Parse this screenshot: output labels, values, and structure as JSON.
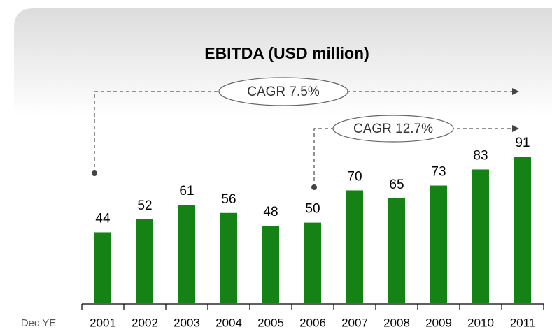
{
  "chart_data": {
    "type": "bar",
    "title": "EBITDA (USD million)",
    "x_label": "Dec YE",
    "categories": [
      "2001",
      "2002",
      "2003",
      "2004",
      "2005",
      "2006",
      "2007",
      "2008",
      "2009",
      "2010",
      "2011"
    ],
    "values": [
      44,
      52,
      61,
      56,
      48,
      50,
      70,
      65,
      73,
      83,
      91
    ],
    "color": "#158215",
    "annotations": [
      "CAGR 7.5%",
      "CAGR 12.7%"
    ]
  }
}
